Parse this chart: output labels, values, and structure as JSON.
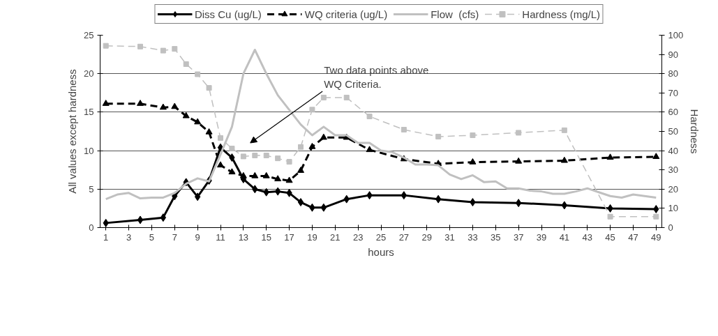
{
  "chart_data": {
    "type": "line",
    "xlabel": "hours",
    "ylabel": "All values except hardness",
    "y2label": "Hardness",
    "xlim": [
      0.5,
      49.5
    ],
    "xticks": [
      1,
      3,
      5,
      7,
      9,
      11,
      13,
      15,
      17,
      19,
      21,
      23,
      25,
      27,
      29,
      31,
      33,
      35,
      37,
      39,
      41,
      43,
      45,
      47,
      49
    ],
    "ylim": [
      0,
      25
    ],
    "yticks": [
      0,
      5,
      10,
      15,
      20,
      25
    ],
    "y2lim": [
      0,
      100
    ],
    "y2ticks": [
      0,
      10,
      20,
      30,
      40,
      50,
      60,
      70,
      80,
      90,
      100
    ],
    "grid": "y",
    "legend": "top",
    "annotations": [
      "Two data points above WQ Criteria."
    ],
    "series": [
      {
        "name": "Diss Cu (ug/L)",
        "color": "#000000",
        "marker": "diamond",
        "line_style": "solid",
        "x": [
          1,
          4,
          6,
          7,
          8,
          9,
          10,
          11,
          12,
          13,
          14,
          15,
          16,
          17,
          18,
          19,
          20,
          22,
          24,
          27,
          30,
          33,
          37,
          41,
          45,
          49
        ],
        "values": [
          0.6,
          1.0,
          1.3,
          4.1,
          5.9,
          4.0,
          6.1,
          10.4,
          9.1,
          6.3,
          5.0,
          4.6,
          4.7,
          4.5,
          3.3,
          2.6,
          2.6,
          3.7,
          4.2,
          4.2,
          3.7,
          3.3,
          3.2,
          2.9,
          2.5,
          2.4
        ]
      },
      {
        "name": "WQ criteria (ug/L)",
        "color": "#000000",
        "marker": "triangle",
        "line_style": "dashed",
        "x": [
          1,
          4,
          6,
          7,
          8,
          9,
          10,
          11,
          12,
          13,
          14,
          15,
          16,
          17,
          18,
          19,
          20,
          22,
          24,
          27,
          30,
          33,
          37,
          41,
          45,
          49
        ],
        "values": [
          16.1,
          16.1,
          15.6,
          15.7,
          14.5,
          13.7,
          12.4,
          8.1,
          7.2,
          6.7,
          6.7,
          6.7,
          6.3,
          6.1,
          7.4,
          10.5,
          11.7,
          11.7,
          10.1,
          8.9,
          8.3,
          8.5,
          8.6,
          8.7,
          9.1,
          9.2
        ]
      },
      {
        "name": "Flow  (cfs)",
        "color": "#c0c0c0",
        "marker": "none",
        "line_style": "solid",
        "x": [
          1,
          2,
          3,
          4,
          5,
          6,
          7,
          8,
          9,
          10,
          11,
          12,
          13,
          14,
          15,
          16,
          17,
          18,
          19,
          20,
          21,
          22,
          23,
          24,
          25,
          26,
          27,
          28,
          29,
          30,
          31,
          32,
          33,
          34,
          35,
          36,
          37,
          38,
          39,
          40,
          41,
          42,
          43,
          44,
          45,
          46,
          47,
          48,
          49
        ],
        "values": [
          3.7,
          4.3,
          4.5,
          3.8,
          3.9,
          3.9,
          4.5,
          5.7,
          6.4,
          6.0,
          9.5,
          13.1,
          20.0,
          23.1,
          20.0,
          17.2,
          15.3,
          13.4,
          12.0,
          13.1,
          12.0,
          12.0,
          11.0,
          11.0,
          10.0,
          9.8,
          9.1,
          8.2,
          8.2,
          8.1,
          6.9,
          6.3,
          6.8,
          5.9,
          6.0,
          5.1,
          5.1,
          4.8,
          4.7,
          4.4,
          4.4,
          4.7,
          5.1,
          4.6,
          4.1,
          3.9,
          4.3,
          4.1,
          3.9
        ]
      },
      {
        "name": "Hardness (mg/L)",
        "color": "#c0c0c0",
        "marker": "square",
        "line_style": "dashed",
        "axis": "y2",
        "x": [
          1,
          4,
          6,
          7,
          8,
          9,
          10,
          11,
          12,
          13,
          14,
          15,
          16,
          17,
          18,
          19,
          20,
          22,
          24,
          27,
          30,
          33,
          37,
          41,
          45,
          49
        ],
        "values": [
          94.5,
          94.1,
          92.0,
          92.9,
          85.0,
          79.7,
          72.6,
          46.6,
          41.1,
          37.0,
          37.5,
          37.5,
          36.0,
          34.2,
          41.9,
          61.3,
          67.6,
          67.6,
          57.8,
          50.9,
          47.3,
          48.0,
          49.3,
          50.6,
          5.7,
          5.7
        ]
      }
    ]
  }
}
